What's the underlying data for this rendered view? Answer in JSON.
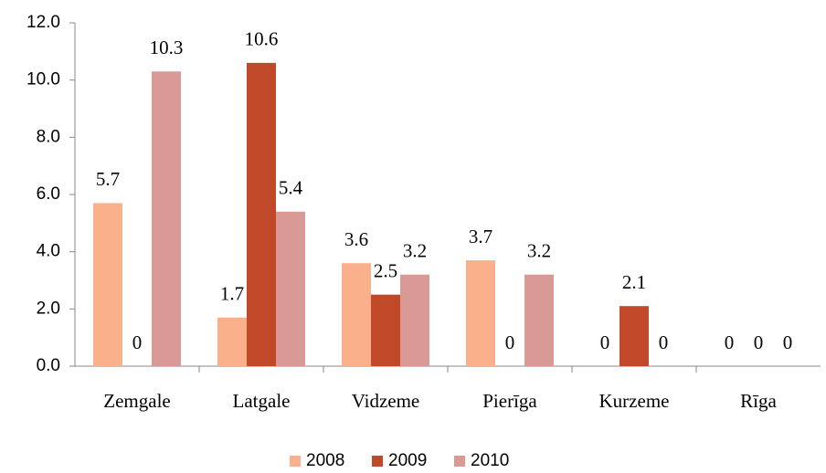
{
  "chart_data": {
    "type": "bar",
    "categories": [
      "Zemgale",
      "Latgale",
      "Vidzeme",
      "Pierīga",
      "Kurzeme",
      "Rīga"
    ],
    "series": [
      {
        "name": "2008",
        "color": "#fbb08c",
        "values": [
          5.7,
          1.7,
          3.6,
          3.7,
          0,
          0
        ]
      },
      {
        "name": "2009",
        "color": "#c0492a",
        "values": [
          0,
          10.6,
          2.5,
          0,
          2.1,
          0
        ]
      },
      {
        "name": "2010",
        "color": "#d99a96",
        "values": [
          10.3,
          5.4,
          3.2,
          3.2,
          0,
          0
        ]
      }
    ],
    "ylim": [
      0,
      12
    ],
    "yticks": [
      {
        "value": 0,
        "label": "0.0"
      },
      {
        "value": 2,
        "label": "2.0"
      },
      {
        "value": 4,
        "label": "4.0"
      },
      {
        "value": 6,
        "label": "6.0"
      },
      {
        "value": 8,
        "label": "8.0"
      },
      {
        "value": 10,
        "label": "10.0"
      },
      {
        "value": 12,
        "label": "12.0"
      }
    ],
    "grid": false,
    "legend": "bottom"
  }
}
